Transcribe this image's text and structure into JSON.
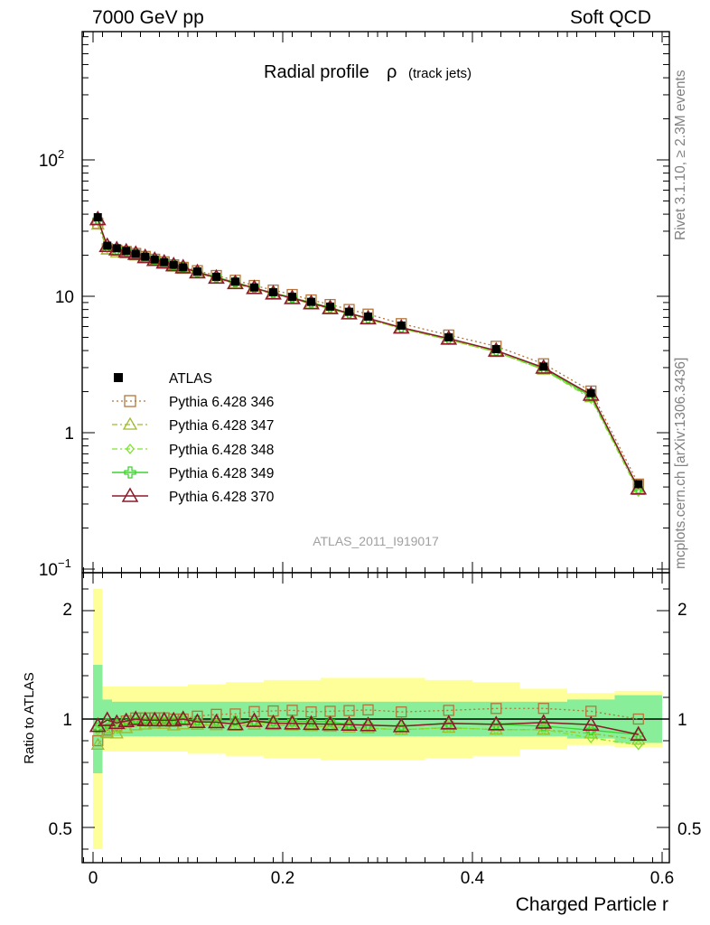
{
  "header": {
    "left": "7000 GeV pp",
    "right": "Soft QCD",
    "side_top": "Rivet 3.1.10, ≥ 2.3M events",
    "side_bottom": "mcplots.cern.ch [arXiv:1306.3436]"
  },
  "chart_data": {
    "type": "line",
    "title": "Radial profile",
    "title_symbol": "ρ",
    "title_suffix": "(track jets)",
    "xlabel": "Charged Particle r",
    "ylabel_main": "",
    "ylabel_ratio": "Ratio to ATLAS",
    "analysis_tag": "ATLAS_2011_I919017",
    "xlim": [
      -0.015,
      0.6
    ],
    "ylim_main": [
      0.1,
      1000
    ],
    "ylog": true,
    "ylim_ratio": [
      0.35,
      2.3
    ],
    "x_ticks": [
      "0",
      "0.2",
      "0.4",
      "0.6"
    ],
    "y_ticks_main": [
      {
        "value": 0.1,
        "base": "10",
        "exp": "−1"
      },
      {
        "value": 1,
        "label": "1"
      },
      {
        "value": 10,
        "label": "10"
      },
      {
        "value": 100,
        "base": "10",
        "exp": "2"
      }
    ],
    "y_ticks_ratio": [
      "0.5",
      "1",
      "2"
    ],
    "x": [
      0.005,
      0.015,
      0.025,
      0.035,
      0.045,
      0.055,
      0.065,
      0.075,
      0.085,
      0.095,
      0.11,
      0.13,
      0.15,
      0.17,
      0.19,
      0.21,
      0.23,
      0.25,
      0.27,
      0.29,
      0.325,
      0.375,
      0.425,
      0.475,
      0.525,
      0.575
    ],
    "x_edges": [
      0,
      0.01,
      0.02,
      0.03,
      0.04,
      0.05,
      0.06,
      0.07,
      0.08,
      0.09,
      0.1,
      0.12,
      0.14,
      0.16,
      0.18,
      0.2,
      0.22,
      0.24,
      0.26,
      0.28,
      0.3,
      0.35,
      0.4,
      0.45,
      0.5,
      0.55,
      0.6
    ],
    "data": {
      "name": "ATLAS",
      "values": [
        38,
        23.5,
        22.5,
        21.5,
        20.5,
        19.5,
        18.6,
        17.8,
        17,
        16.3,
        15.2,
        13.9,
        12.8,
        11.6,
        10.7,
        9.9,
        9.1,
        8.4,
        7.7,
        7.1,
        6.1,
        5.0,
        4.1,
        3.05,
        1.95,
        0.42
      ],
      "band_inner": [
        0.25,
        0.09,
        0.08,
        0.08,
        0.08,
        0.08,
        0.08,
        0.08,
        0.08,
        0.08,
        0.08,
        0.08,
        0.08,
        0.08,
        0.08,
        0.08,
        0.08,
        0.08,
        0.08,
        0.08,
        0.08,
        0.08,
        0.08,
        0.08,
        0.09,
        0.11
      ],
      "band_outer": [
        0.6,
        0.15,
        0.15,
        0.15,
        0.15,
        0.15,
        0.15,
        0.15,
        0.15,
        0.15,
        0.16,
        0.16,
        0.17,
        0.17,
        0.18,
        0.18,
        0.18,
        0.19,
        0.19,
        0.19,
        0.19,
        0.18,
        0.17,
        0.14,
        0.12,
        0.13
      ]
    },
    "series": [
      {
        "name": "Pythia 6.428 346",
        "color": "#b5753a",
        "marker": "square",
        "dash": "2,3",
        "values": [
          34.2,
          22.3,
          21.8,
          21.3,
          20.6,
          19.6,
          18.7,
          17.9,
          17.0,
          16.3,
          15.4,
          14.2,
          13.1,
          12.0,
          11.1,
          10.3,
          9.4,
          8.7,
          8.0,
          7.4,
          6.3,
          5.2,
          4.3,
          3.2,
          2.02,
          0.42
        ]
      },
      {
        "name": "Pythia 6.428 347",
        "color": "#9dbb2f",
        "marker": "triangle",
        "dash": "6,3,2,3",
        "values": [
          33.5,
          22.0,
          21.0,
          20.6,
          19.9,
          19.0,
          18.2,
          17.4,
          16.5,
          15.9,
          14.8,
          13.5,
          12.4,
          11.3,
          10.4,
          9.6,
          8.8,
          8.1,
          7.4,
          6.8,
          5.8,
          4.8,
          3.9,
          2.9,
          1.82,
          0.38
        ]
      },
      {
        "name": "Pythia 6.428 348",
        "color": "#7ee42e",
        "marker": "diamond",
        "dash": "6,3,2,3",
        "values": [
          36.0,
          22.5,
          21.5,
          21.0,
          20.2,
          19.2,
          18.4,
          17.6,
          16.8,
          16.2,
          14.9,
          13.6,
          12.5,
          11.4,
          10.5,
          9.7,
          8.8,
          8.1,
          7.4,
          6.8,
          5.8,
          4.8,
          3.9,
          2.9,
          1.78,
          0.37
        ]
      },
      {
        "name": "Pythia 6.428 349",
        "color": "#3cd42e",
        "marker": "cross",
        "dash": "",
        "values": [
          36.5,
          23.0,
          22.0,
          21.4,
          20.5,
          19.5,
          18.6,
          17.8,
          17.0,
          16.3,
          15.1,
          13.8,
          12.7,
          11.5,
          10.6,
          9.8,
          9.0,
          8.3,
          7.5,
          6.9,
          5.9,
          4.9,
          4.0,
          2.95,
          1.85,
          0.39
        ]
      },
      {
        "name": "Pythia 6.428 370",
        "color": "#8b1a2a",
        "marker": "triangle",
        "dash": "",
        "values": [
          36.8,
          23.4,
          22.1,
          21.3,
          20.5,
          19.4,
          18.5,
          17.7,
          16.9,
          16.3,
          15.0,
          13.7,
          12.5,
          11.5,
          10.5,
          9.7,
          8.9,
          8.2,
          7.5,
          6.9,
          5.9,
          4.9,
          4.0,
          3.0,
          1.9,
          0.39
        ]
      }
    ]
  }
}
